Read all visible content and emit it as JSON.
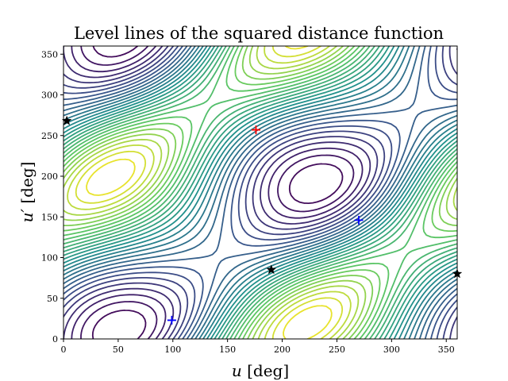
{
  "chart_data": {
    "type": "contour",
    "title": "Level lines of the squared distance function",
    "xlabel": {
      "var": "u",
      "unit": " [deg]"
    },
    "ylabel": {
      "var": "u′",
      "unit": " [deg]"
    },
    "xlim": [
      0,
      360
    ],
    "ylim": [
      0,
      360
    ],
    "xticks": [
      0,
      50,
      100,
      150,
      200,
      250,
      300,
      350
    ],
    "yticks": [
      0,
      50,
      100,
      150,
      200,
      250,
      300,
      350
    ],
    "colormap": "viridis",
    "contour_levels": 30,
    "grid": false,
    "markers": [
      {
        "kind": "maximum",
        "symbol": "plus",
        "color": "#ff0000",
        "x": 176,
        "y": 257
      },
      {
        "kind": "minimum",
        "symbol": "plus",
        "color": "#0000ff",
        "x": 99,
        "y": 23
      },
      {
        "kind": "minimum",
        "symbol": "plus",
        "color": "#0000ff",
        "x": 270,
        "y": 146
      },
      {
        "kind": "saddle",
        "symbol": "star",
        "color": "#000000",
        "x": 3,
        "y": 268
      },
      {
        "kind": "saddle",
        "symbol": "star",
        "color": "#000000",
        "x": 190,
        "y": 85
      },
      {
        "kind": "saddle",
        "symbol": "star",
        "color": "#000000",
        "x": 360,
        "y": 80
      }
    ]
  }
}
